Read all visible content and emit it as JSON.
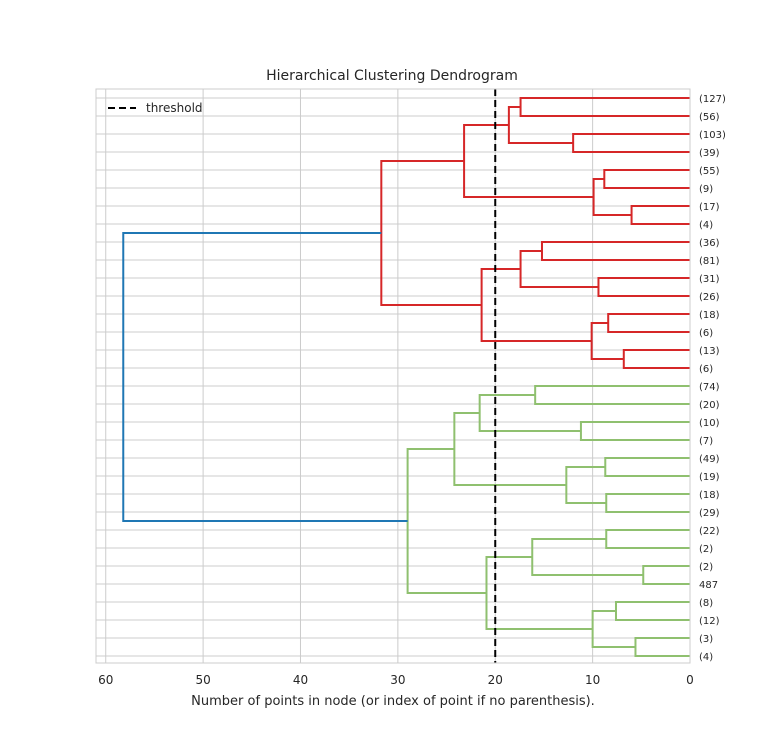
{
  "chart_data": {
    "type": "dendrogram",
    "title": "Hierarchical Clustering Dendrogram",
    "xlabel": "Number of points in node (or index of point if no parenthesis).",
    "xlim": [
      61,
      0
    ],
    "x_ticks": [
      60,
      50,
      40,
      30,
      20,
      10,
      0
    ],
    "grid": true,
    "orientation": "left",
    "threshold": 20,
    "legend": {
      "entries": [
        "threshold"
      ],
      "placement": "top-left"
    },
    "colors": {
      "red_cluster": "#d62728",
      "green_cluster": "#8fc06f",
      "root_link": "#1f77b4",
      "threshold": "#000000",
      "grid": "#cccccc",
      "background": "#ffffff"
    },
    "leaves": [
      "(127)",
      "(56)",
      "(103)",
      "(39)",
      "(55)",
      "(9)",
      "(17)",
      "(4)",
      "(36)",
      "(81)",
      "(31)",
      "(26)",
      "(18)",
      "(6)",
      "(13)",
      "(6)",
      "(74)",
      "(20)",
      "(10)",
      "(7)",
      "(49)",
      "(19)",
      "(18)",
      "(29)",
      "(22)",
      "(2)",
      "(2)",
      "487",
      "(8)",
      "(12)",
      "(3)",
      "(4)"
    ],
    "links": [
      {
        "id": "N0",
        "children": [
          0,
          1
        ],
        "height": 17.4,
        "color": "red"
      },
      {
        "id": "N1",
        "children": [
          2,
          3
        ],
        "height": 12.0,
        "color": "red"
      },
      {
        "id": "N2",
        "children": [
          "N0",
          "N1"
        ],
        "height": 18.6,
        "color": "red"
      },
      {
        "id": "N3",
        "children": [
          4,
          5
        ],
        "height": 8.8,
        "color": "red"
      },
      {
        "id": "N4",
        "children": [
          6,
          7
        ],
        "height": 6.0,
        "color": "red"
      },
      {
        "id": "N5",
        "children": [
          "N3",
          "N4"
        ],
        "height": 9.9,
        "color": "red"
      },
      {
        "id": "N6",
        "children": [
          "N2",
          "N5"
        ],
        "height": 23.2,
        "color": "red"
      },
      {
        "id": "N7",
        "children": [
          8,
          9
        ],
        "height": 15.2,
        "color": "red"
      },
      {
        "id": "N8",
        "children": [
          10,
          11
        ],
        "height": 9.4,
        "color": "red"
      },
      {
        "id": "N9",
        "children": [
          "N7",
          "N8"
        ],
        "height": 17.4,
        "color": "red"
      },
      {
        "id": "N10",
        "children": [
          12,
          13
        ],
        "height": 8.4,
        "color": "red"
      },
      {
        "id": "N11",
        "children": [
          14,
          15
        ],
        "height": 6.8,
        "color": "red"
      },
      {
        "id": "N12",
        "children": [
          "N10",
          "N11"
        ],
        "height": 10.1,
        "color": "red"
      },
      {
        "id": "N13",
        "children": [
          "N9",
          "N12"
        ],
        "height": 21.4,
        "color": "red"
      },
      {
        "id": "N14",
        "children": [
          "N6",
          "N13"
        ],
        "height": 31.7,
        "color": "red"
      },
      {
        "id": "N15",
        "children": [
          16,
          17
        ],
        "height": 15.9,
        "color": "green"
      },
      {
        "id": "N16",
        "children": [
          18,
          19
        ],
        "height": 11.2,
        "color": "green"
      },
      {
        "id": "N17",
        "children": [
          "N15",
          "N16"
        ],
        "height": 21.6,
        "color": "green"
      },
      {
        "id": "N18",
        "children": [
          20,
          21
        ],
        "height": 8.7,
        "color": "green"
      },
      {
        "id": "N19",
        "children": [
          22,
          23
        ],
        "height": 8.6,
        "color": "green"
      },
      {
        "id": "N20",
        "children": [
          "N18",
          "N19"
        ],
        "height": 12.7,
        "color": "green"
      },
      {
        "id": "N21",
        "children": [
          "N17",
          "N20"
        ],
        "height": 24.2,
        "color": "green"
      },
      {
        "id": "N22",
        "children": [
          24,
          25
        ],
        "height": 8.6,
        "color": "green"
      },
      {
        "id": "N23",
        "children": [
          26,
          27
        ],
        "height": 4.8,
        "color": "green"
      },
      {
        "id": "N24",
        "children": [
          "N22",
          "N23"
        ],
        "height": 16.2,
        "color": "green"
      },
      {
        "id": "N25",
        "children": [
          28,
          29
        ],
        "height": 7.6,
        "color": "green"
      },
      {
        "id": "N26",
        "children": [
          30,
          31
        ],
        "height": 5.6,
        "color": "green"
      },
      {
        "id": "N27",
        "children": [
          "N25",
          "N26"
        ],
        "height": 10.0,
        "color": "green"
      },
      {
        "id": "N28",
        "children": [
          "N24",
          "N27"
        ],
        "height": 20.9,
        "color": "green"
      },
      {
        "id": "N29",
        "children": [
          "N21",
          "N28"
        ],
        "height": 29.0,
        "color": "green"
      },
      {
        "id": "N30",
        "children": [
          "N14",
          "N29"
        ],
        "height": 58.2,
        "color": "root"
      }
    ]
  }
}
